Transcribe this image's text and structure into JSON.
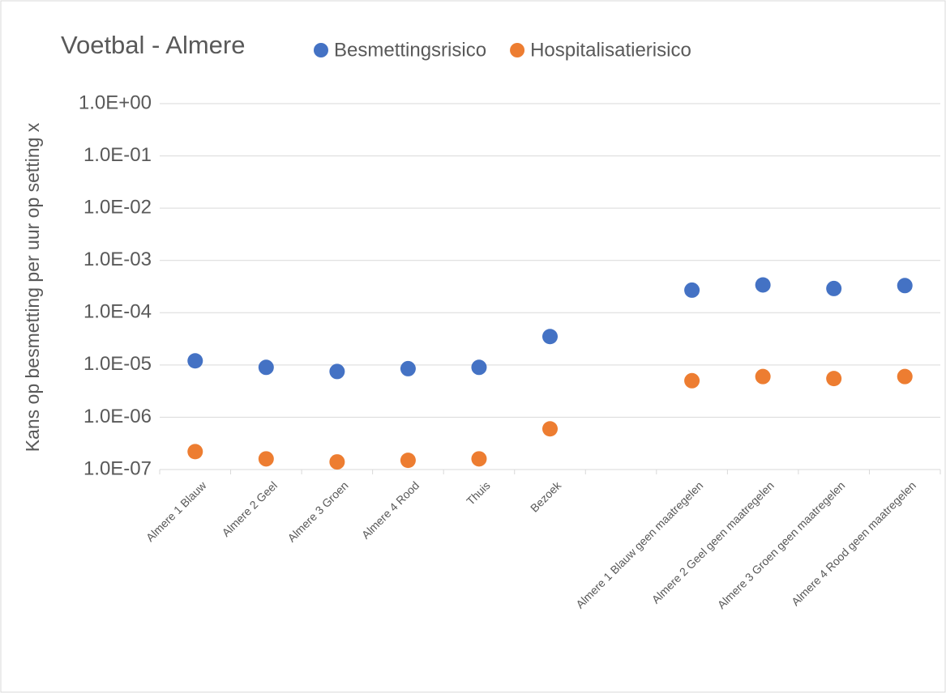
{
  "chart_data": {
    "type": "scatter",
    "title": "Voetbal - Almere",
    "y_label": "Kans op besmetting per uur op setting x",
    "log_y": true,
    "grid": true,
    "legend": "top",
    "categories": [
      "Almere 1 Blauw",
      "Almere 2 Geel",
      "Almere 3 Groen",
      "Almere 4 Rood",
      "Thuis",
      "Bezoek",
      null,
      "Almere 1 Blauw geen maatregelen",
      "Almere 2 Geel geen maatregelen",
      "Almere 3 Groen geen maatregelen",
      "Almere 4 Rood geen maatregelen"
    ],
    "series": [
      {
        "name": "Besmettingsrisico",
        "color": "#4472c4",
        "values": [
          1.2e-05,
          9e-06,
          7.5e-06,
          8.5e-06,
          9e-06,
          3.5e-05,
          null,
          0.00027,
          0.00034,
          0.00029,
          0.00033
        ]
      },
      {
        "name": "Hospitalisatierisico",
        "color": "#ed7d31",
        "values": [
          2.2e-07,
          1.6e-07,
          1.4e-07,
          1.5e-07,
          1.6e-07,
          6e-07,
          null,
          5e-06,
          6e-06,
          5.5e-06,
          6e-06
        ]
      }
    ],
    "ylim": [
      1e-07,
      1
    ],
    "yticks": [
      {
        "value": 1e-07,
        "label": "1.0E-07"
      },
      {
        "value": 1e-06,
        "label": "1.0E-06"
      },
      {
        "value": 1e-05,
        "label": "1.0E-05"
      },
      {
        "value": 0.0001,
        "label": "1.0E-04"
      },
      {
        "value": 0.001,
        "label": "1.0E-03"
      },
      {
        "value": 0.01,
        "label": "1.0E-02"
      },
      {
        "value": 0.1,
        "label": "1.0E-01"
      },
      {
        "value": 1,
        "label": "1.0E+00"
      }
    ]
  }
}
